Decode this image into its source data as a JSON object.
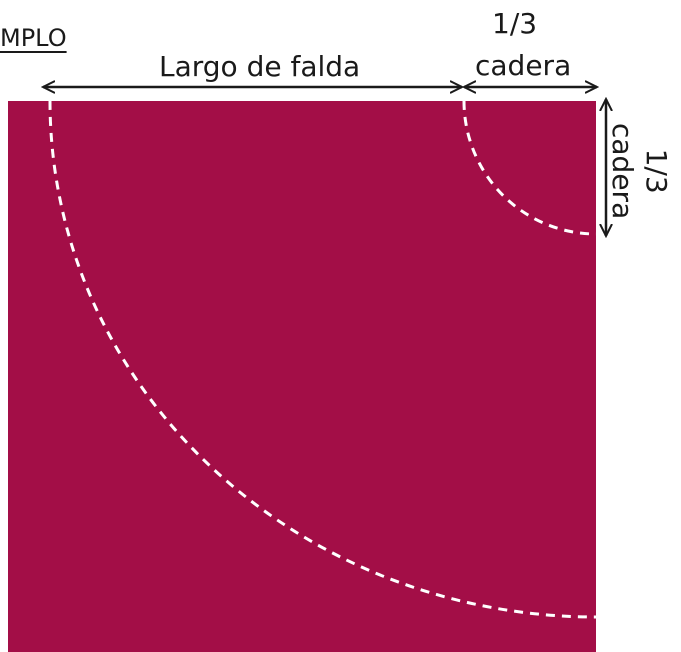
{
  "labels": {
    "section_title": "MPLO",
    "skirt_length": "Largo de falda",
    "hip_third_top_line1": "1/3",
    "hip_third_top_line2": "cadera",
    "hip_third_side_line1": "1/3",
    "hip_third_side_line2": "cadera"
  },
  "colors": {
    "fabric": "#A30E47",
    "cut_line": "#FFFFFF",
    "ink": "#1A1A1A"
  }
}
